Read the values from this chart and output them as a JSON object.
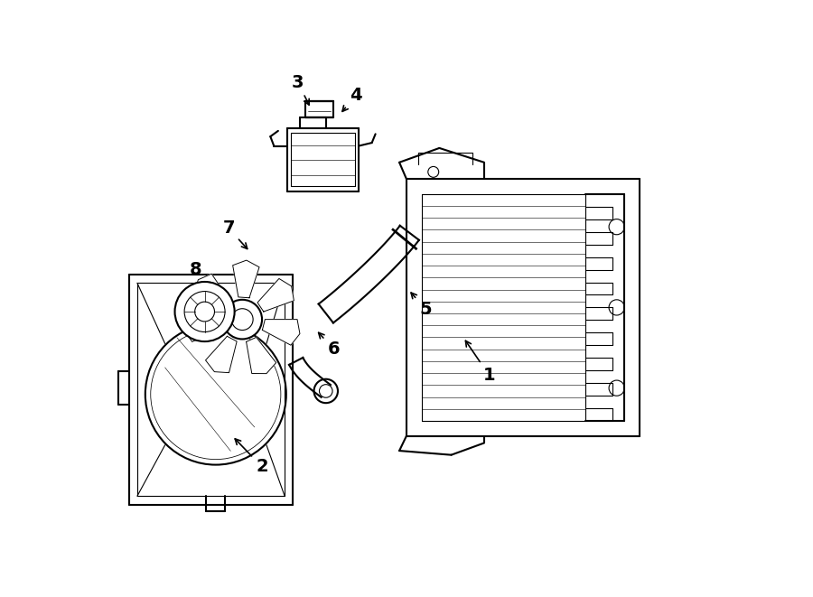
{
  "bg_color": "#ffffff",
  "line_color": "#000000",
  "line_width": 1.5,
  "thin_line": 0.8,
  "fig_width": 9.0,
  "fig_height": 6.61
}
